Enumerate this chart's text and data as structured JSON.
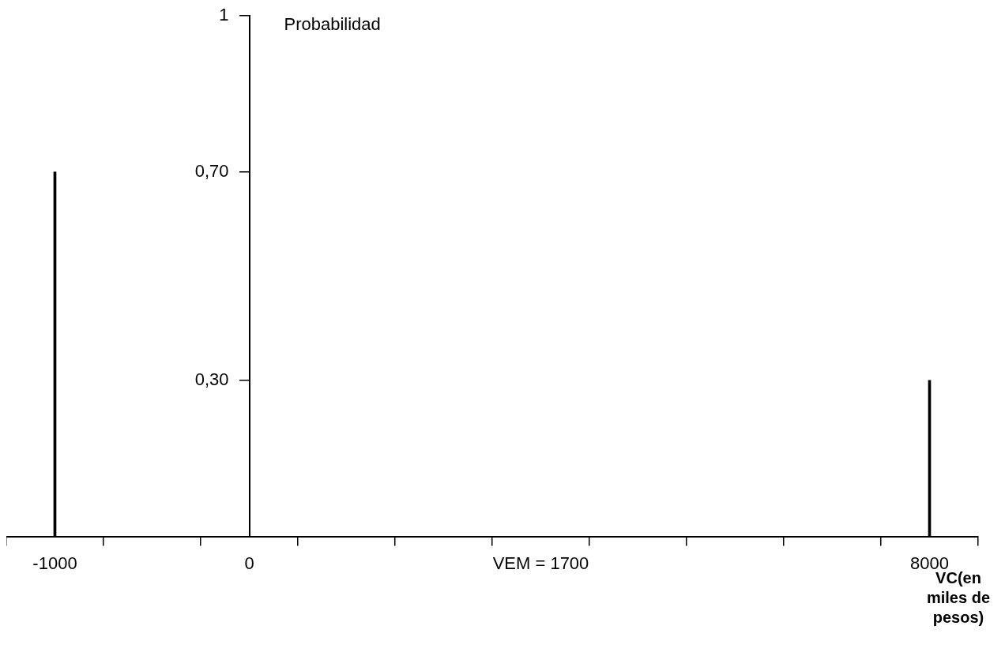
{
  "chart_data": {
    "type": "bar",
    "ylabel": "Probabilidad",
    "xlabel": "VC(en miles de pesos)",
    "categories": [
      "-1000",
      null,
      "0",
      null,
      null,
      "VEM = 1700",
      null,
      null,
      null,
      "8000"
    ],
    "values": [
      0.7,
      null,
      null,
      null,
      null,
      null,
      null,
      null,
      null,
      0.3
    ],
    "color": "#000000",
    "ylim": [
      0,
      1
    ],
    "yticks": [
      {
        "value": 0.3,
        "label": "0,30"
      },
      {
        "value": 0.7,
        "label": "0,70"
      },
      {
        "value": 1,
        "label": "1"
      }
    ],
    "grid": false,
    "legend": false
  }
}
